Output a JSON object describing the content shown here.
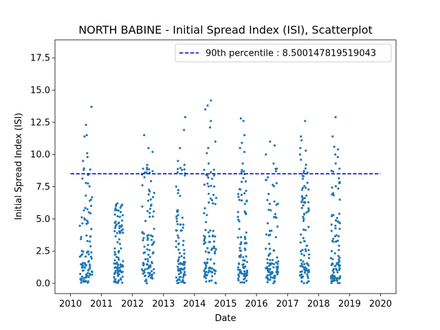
{
  "chart_data": {
    "type": "scatter",
    "title": "NORTH BABINE - Initial Spread Index (ISI), Scatterplot",
    "xlabel": "Date",
    "ylabel": "Initial Spread Index (ISI)",
    "xlim": [
      2009.5,
      2020.5
    ],
    "ylim": [
      -0.8,
      18.9
    ],
    "x_ticks": [
      2010,
      2011,
      2012,
      2013,
      2014,
      2015,
      2016,
      2017,
      2018,
      2019,
      2020
    ],
    "x_tick_labels": [
      "2010",
      "2011",
      "2012",
      "2013",
      "2014",
      "2015",
      "2016",
      "2017",
      "2018",
      "2019",
      "2020"
    ],
    "y_ticks": [
      0.0,
      2.5,
      5.0,
      7.5,
      10.0,
      12.5,
      15.0,
      17.5
    ],
    "y_tick_labels": [
      "0.0",
      "2.5",
      "5.0",
      "7.5",
      "10.0",
      "12.5",
      "15.0",
      "17.5"
    ],
    "grid": false,
    "legend_position": "upper right",
    "point_color": "#1f77b4",
    "reference_line": {
      "label": "90th percentile : 8.500147819519043",
      "value": 8.500147819519043,
      "x_range": [
        2010,
        2020
      ],
      "color": "#0000cc",
      "style": "dashed"
    },
    "season_clusters": [
      {
        "year": 2010,
        "x_start": 2010.3,
        "x_end": 2010.7,
        "y_max": 13.7,
        "high_points": [
          13.7,
          12.3,
          11.5,
          11.4,
          10.1,
          9.8,
          9.5
        ]
      },
      {
        "year": 2011,
        "x_start": 2011.4,
        "x_end": 2011.7,
        "y_max": 6.2,
        "high_points": [
          6.2,
          6.1,
          5.2,
          4.4,
          4.3,
          4.1,
          3.9
        ]
      },
      {
        "year": 2012,
        "x_start": 2012.3,
        "x_end": 2012.7,
        "y_max": 11.5,
        "high_points": [
          11.5,
          10.5,
          10.2,
          9.2,
          8.9,
          8.7,
          8.6
        ]
      },
      {
        "year": 2013,
        "x_start": 2013.4,
        "x_end": 2013.7,
        "y_max": 12.9,
        "high_points": [
          12.9,
          11.9,
          10.5,
          9.5,
          9.2,
          8.8
        ]
      },
      {
        "year": 2014,
        "x_start": 2014.3,
        "x_end": 2014.7,
        "y_max": 14.2,
        "high_points": [
          14.2,
          13.8,
          13.5,
          12.6,
          12.1,
          11.0,
          10.5,
          10.1,
          9.3
        ]
      },
      {
        "year": 2015,
        "x_start": 2015.4,
        "x_end": 2015.7,
        "y_max": 12.8,
        "high_points": [
          12.8,
          12.6,
          11.5,
          10.9,
          10.5,
          10.2,
          9.3,
          8.8
        ]
      },
      {
        "year": 2016,
        "x_start": 2016.3,
        "x_end": 2016.7,
        "y_max": 11.0,
        "high_points": [
          11.0,
          10.7,
          10.0,
          9.3,
          8.9,
          8.7
        ]
      },
      {
        "year": 2017,
        "x_start": 2017.4,
        "x_end": 2017.7,
        "y_max": 12.6,
        "high_points": [
          12.6,
          11.4,
          11.1,
          10.5,
          10.3,
          10.0,
          9.6,
          9.2
        ]
      },
      {
        "year": 2018,
        "x_start": 2018.4,
        "x_end": 2018.7,
        "y_max": 12.9,
        "high_points": [
          12.9,
          11.4,
          10.6,
          10.4,
          10.0,
          9.8,
          9.3,
          8.9
        ]
      }
    ]
  }
}
